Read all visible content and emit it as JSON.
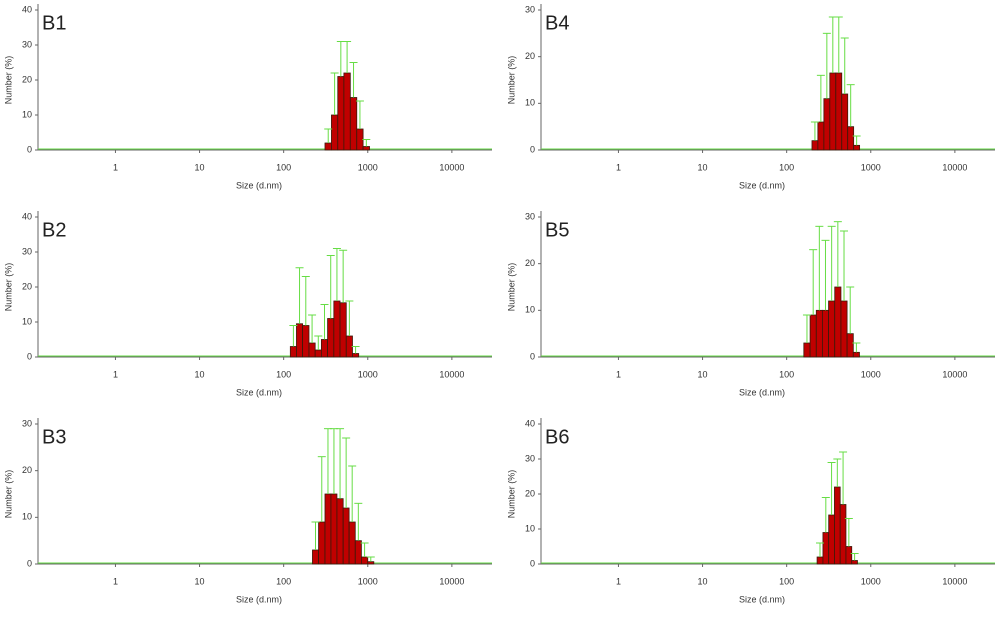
{
  "chart_data": [
    {
      "type": "histogram",
      "title": "B1",
      "x_label": "Size (d.nm)",
      "y_label": "Number (%)",
      "log_x": true,
      "xlim": [
        0.12,
        30000
      ],
      "xticks": [
        1,
        10,
        100,
        1000,
        10000
      ],
      "ylim": [
        0,
        40
      ],
      "yticks": [
        0,
        10,
        20,
        30,
        40
      ],
      "bins": [
        310,
        370,
        440,
        520,
        620,
        740,
        880,
        1050
      ],
      "values": [
        2,
        10,
        21,
        22,
        15,
        6,
        1
      ],
      "errors": [
        4,
        12,
        10,
        9,
        10,
        8,
        2
      ],
      "color": "#c00000",
      "error_color": "#66dd44"
    },
    {
      "type": "histogram",
      "title": "B4",
      "x_label": "Size (d.nm)",
      "y_label": "Number (%)",
      "log_x": true,
      "xlim": [
        0.12,
        30000
      ],
      "xticks": [
        1,
        10,
        100,
        1000,
        10000
      ],
      "ylim": [
        0,
        30
      ],
      "yticks": [
        0,
        10,
        20,
        30
      ],
      "bins": [
        200,
        235,
        277,
        326,
        384,
        452,
        532,
        626,
        737
      ],
      "values": [
        2,
        6,
        11,
        16.5,
        16.5,
        12,
        5,
        1
      ],
      "errors": [
        4,
        10,
        14,
        12,
        12,
        12,
        9,
        2
      ],
      "color": "#c00000",
      "error_color": "#66dd44"
    },
    {
      "type": "histogram",
      "title": "B2",
      "x_label": "Size (d.nm)",
      "y_label": "Number (%)",
      "log_x": true,
      "xlim": [
        0.12,
        30000
      ],
      "xticks": [
        1,
        10,
        100,
        1000,
        10000
      ],
      "ylim": [
        0,
        40
      ],
      "yticks": [
        0,
        10,
        20,
        30,
        40
      ],
      "bins": [
        120,
        142,
        168,
        200,
        237,
        281,
        333,
        395,
        468,
        555,
        658,
        780
      ],
      "values": [
        3,
        9.5,
        9,
        4,
        2,
        5,
        11,
        16,
        15.5,
        6,
        1
      ],
      "errors": [
        6,
        16,
        14,
        8,
        4,
        10,
        18,
        15,
        15,
        10,
        2
      ],
      "color": "#c00000",
      "error_color": "#66dd44"
    },
    {
      "type": "histogram",
      "title": "B5",
      "x_label": "Size (d.nm)",
      "y_label": "Number (%)",
      "log_x": true,
      "xlim": [
        0.12,
        30000
      ],
      "xticks": [
        1,
        10,
        100,
        1000,
        10000
      ],
      "ylim": [
        0,
        30
      ],
      "yticks": [
        0,
        10,
        20,
        30
      ],
      "bins": [
        160,
        190,
        225,
        266,
        315,
        373,
        442,
        523,
        620,
        734
      ],
      "values": [
        3,
        9,
        10,
        10,
        12,
        15,
        12,
        5,
        1
      ],
      "errors": [
        6,
        14,
        18,
        15,
        16,
        14,
        15,
        10,
        2
      ],
      "color": "#c00000",
      "error_color": "#66dd44"
    },
    {
      "type": "histogram",
      "title": "B3",
      "x_label": "Size (d.nm)",
      "y_label": "Number (%)",
      "log_x": true,
      "xlim": [
        0.12,
        30000
      ],
      "xticks": [
        1,
        10,
        100,
        1000,
        10000
      ],
      "ylim": [
        0,
        30
      ],
      "yticks": [
        0,
        10,
        20,
        30
      ],
      "bins": [
        220,
        260,
        310,
        365,
        430,
        510,
        600,
        710,
        840,
        1000,
        1180
      ],
      "values": [
        3,
        9,
        15,
        15,
        14,
        12,
        9,
        5,
        1.5,
        0.5
      ],
      "errors": [
        6,
        14,
        14,
        14,
        15,
        15,
        12,
        8,
        3,
        1
      ],
      "color": "#c00000",
      "error_color": "#66dd44"
    },
    {
      "type": "histogram",
      "title": "B6",
      "x_label": "Size (d.nm)",
      "y_label": "Number (%)",
      "log_x": true,
      "xlim": [
        0.12,
        30000
      ],
      "xticks": [
        1,
        10,
        100,
        1000,
        10000
      ],
      "ylim": [
        0,
        40
      ],
      "yticks": [
        0,
        10,
        20,
        30,
        40
      ],
      "bins": [
        230,
        270,
        316,
        370,
        433,
        507,
        594,
        695
      ],
      "values": [
        2,
        9,
        14,
        22,
        17,
        5,
        1
      ],
      "errors": [
        4,
        10,
        15,
        8,
        15,
        8,
        2
      ],
      "color": "#c00000",
      "error_color": "#66dd44"
    }
  ]
}
